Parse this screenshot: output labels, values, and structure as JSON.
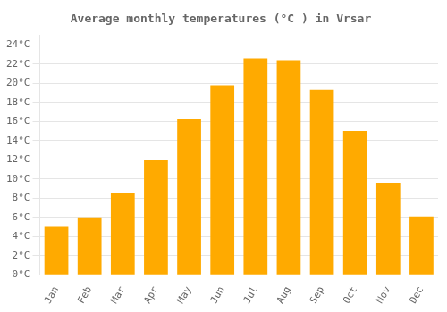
{
  "chart_data": {
    "type": "bar",
    "title": "Average monthly temperatures (°C ) in Vrsar",
    "categories": [
      "Jan",
      "Feb",
      "Mar",
      "Apr",
      "May",
      "Jun",
      "Jul",
      "Aug",
      "Sep",
      "Oct",
      "Nov",
      "Dec"
    ],
    "values": [
      5.0,
      6.0,
      8.5,
      12.0,
      16.3,
      19.8,
      22.6,
      22.4,
      19.3,
      15.0,
      9.6,
      6.1
    ],
    "color": "#FFAA00",
    "ylim": [
      0,
      25
    ],
    "yticks": [
      {
        "value": 0,
        "label": "0°C"
      },
      {
        "value": 2,
        "label": "2°C"
      },
      {
        "value": 4,
        "label": "4°C"
      },
      {
        "value": 6,
        "label": "6°C"
      },
      {
        "value": 8,
        "label": "8°C"
      },
      {
        "value": 10,
        "label": "10°C"
      },
      {
        "value": 12,
        "label": "12°C"
      },
      {
        "value": 14,
        "label": "14°C"
      },
      {
        "value": 16,
        "label": "16°C"
      },
      {
        "value": 18,
        "label": "18°C"
      },
      {
        "value": 20,
        "label": "20°C"
      },
      {
        "value": 22,
        "label": "22°C"
      },
      {
        "value": 24,
        "label": "24°C"
      }
    ],
    "grid": true
  }
}
